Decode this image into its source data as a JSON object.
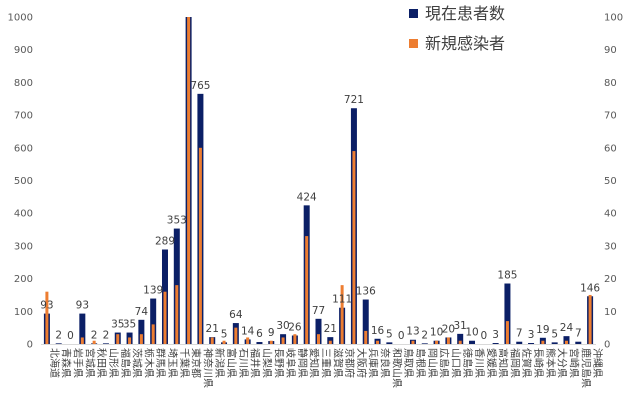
{
  "chart_data": {
    "type": "bar",
    "title": "",
    "xlabel": "",
    "ylabel": "",
    "ylim_left": [
      0,
      1000
    ],
    "ylim_right": [
      0,
      100
    ],
    "left_ticks": [
      0,
      100,
      200,
      300,
      400,
      500,
      600,
      700,
      800,
      900,
      1000
    ],
    "right_ticks": [
      0,
      10,
      20,
      30,
      40,
      50,
      60,
      70,
      80,
      90,
      100
    ],
    "grid": false,
    "legend_position": "top-right",
    "categories": [
      "北海道",
      "青森県",
      "岩手県",
      "宮城県",
      "秋田県",
      "山形県",
      "福島県",
      "茨城県",
      "栃木県",
      "群馬県",
      "埼玉県",
      "千葉県",
      "東京都",
      "神奈川県",
      "新潟県",
      "富山県",
      "石川県",
      "福井県",
      "山梨県",
      "長野県",
      "岐阜県",
      "静岡県",
      "愛知県",
      "三重県",
      "滋賀県",
      "京都府",
      "大阪府",
      "兵庫県",
      "奈良県",
      "和歌山県",
      "鳥取県",
      "島根県",
      "岡山県",
      "広島県",
      "山口県",
      "徳島県",
      "香川県",
      "愛媛県",
      "高知県",
      "福岡県",
      "佐賀県",
      "長崎県",
      "熊本県",
      "大分県",
      "宮崎県",
      "鹿児島県",
      "沖縄県"
    ],
    "series": [
      {
        "name": "現在患者数",
        "axis": "left",
        "color": "#0b1f66",
        "values": [
          93,
          2,
          0,
          93,
          2,
          2,
          35,
          35,
          74,
          139,
          289,
          353,
          1000,
          765,
          21,
          5,
          64,
          14,
          6,
          9,
          30,
          26,
          424,
          77,
          21,
          111,
          721,
          136,
          16,
          5,
          0,
          13,
          2,
          10,
          20,
          31,
          10,
          0,
          3,
          185,
          7,
          3,
          19,
          5,
          24,
          7,
          146
        ]
      },
      {
        "name": "新規感染者",
        "axis": "right",
        "color": "#ed7d31",
        "values": [
          16,
          0,
          0,
          2,
          1,
          0,
          3,
          2,
          3,
          6,
          16,
          18,
          100,
          60,
          2,
          1,
          5,
          2,
          0,
          1,
          2,
          3,
          33,
          3,
          1,
          18,
          59,
          4,
          1,
          0,
          0,
          1,
          0,
          1,
          2,
          1,
          0,
          0,
          0,
          7,
          0,
          0,
          1,
          0,
          1,
          0,
          15
        ]
      }
    ],
    "data_labels": [
      "93",
      "2",
      "0",
      "93",
      "2",
      "2",
      "35",
      "35",
      "74",
      "139",
      "289",
      "353",
      "",
      "765",
      "21",
      "5",
      "64",
      "14",
      "6",
      "9",
      "30",
      "26",
      "424",
      "77",
      "21",
      "111",
      "721",
      "136",
      "16",
      "5",
      "0",
      "13",
      "2",
      "10",
      "20",
      "31",
      "10",
      "0",
      "3",
      "185",
      "7",
      "3",
      "19",
      "5",
      "24",
      "7",
      "146"
    ]
  }
}
